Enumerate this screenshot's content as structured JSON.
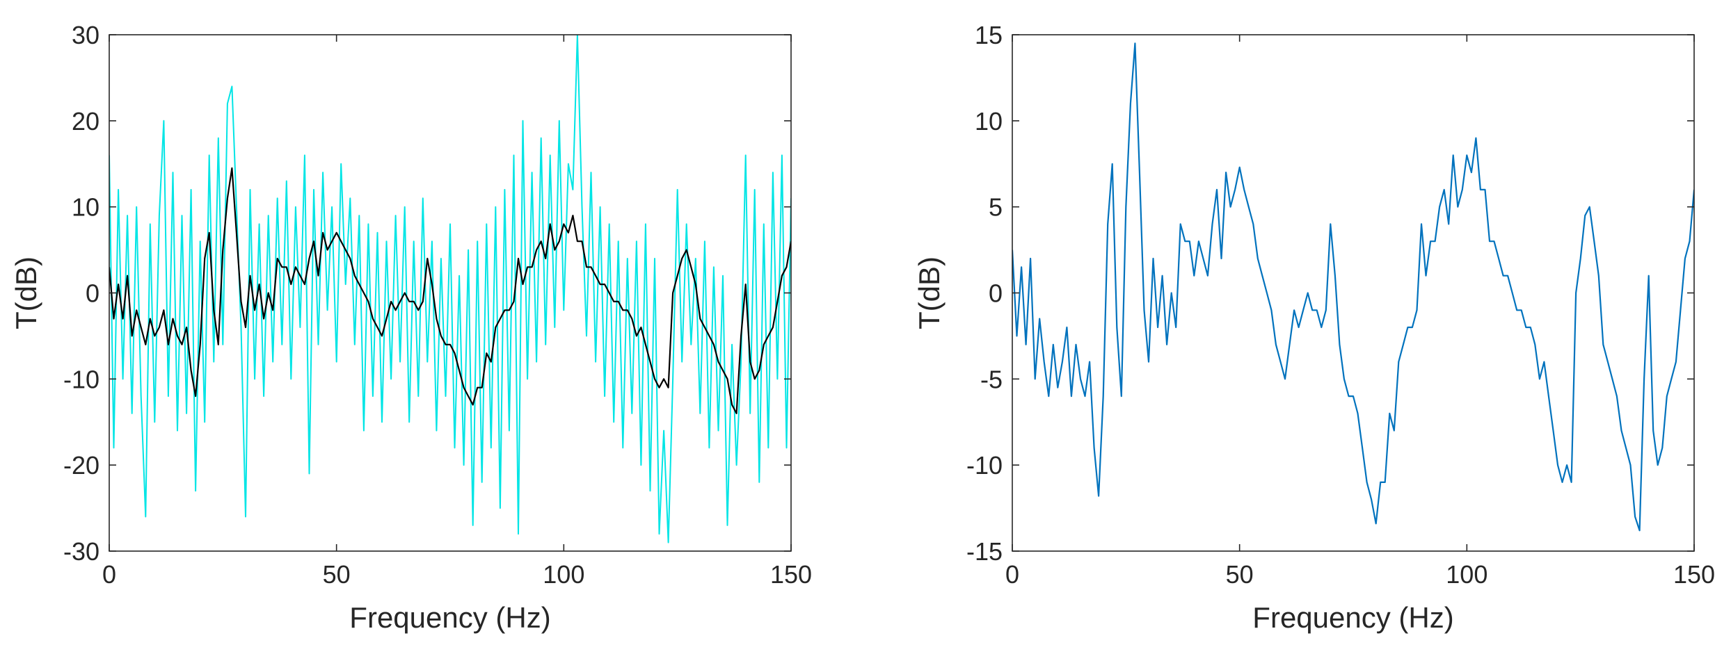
{
  "figure": {
    "background": "#ffffff",
    "axis_color": "#262626"
  },
  "chart_data": [
    {
      "type": "line",
      "title": "",
      "xlabel": "Frequency (Hz)",
      "ylabel": "T(dB)",
      "xlim": [
        0,
        150
      ],
      "ylim": [
        -30,
        30
      ],
      "xticks": [
        0,
        50,
        100,
        150
      ],
      "yticks": [
        -30,
        -20,
        -10,
        0,
        10,
        20,
        30
      ],
      "grid": false,
      "legend": "none",
      "series": [
        {
          "role": "raw",
          "color": "#00e5e5",
          "x": [
            0,
            1,
            2,
            3,
            4,
            5,
            6,
            7,
            8,
            9,
            10,
            11,
            12,
            13,
            14,
            15,
            16,
            17,
            18,
            19,
            20,
            21,
            22,
            23,
            24,
            25,
            26,
            27,
            28,
            29,
            30,
            31,
            32,
            33,
            34,
            35,
            36,
            37,
            38,
            39,
            40,
            41,
            42,
            43,
            44,
            45,
            46,
            47,
            48,
            49,
            50,
            51,
            52,
            53,
            54,
            55,
            56,
            57,
            58,
            59,
            60,
            61,
            62,
            63,
            64,
            65,
            66,
            67,
            68,
            69,
            70,
            71,
            72,
            73,
            74,
            75,
            76,
            77,
            78,
            79,
            80,
            81,
            82,
            83,
            84,
            85,
            86,
            87,
            88,
            89,
            90,
            91,
            92,
            93,
            94,
            95,
            96,
            97,
            98,
            99,
            100,
            101,
            102,
            103,
            104,
            105,
            106,
            107,
            108,
            109,
            110,
            111,
            112,
            113,
            114,
            115,
            116,
            117,
            118,
            119,
            120,
            121,
            122,
            123,
            124,
            125,
            126,
            127,
            128,
            129,
            130,
            131,
            132,
            133,
            134,
            135,
            136,
            137,
            138,
            139,
            140,
            141,
            142,
            143,
            144,
            145,
            146,
            147,
            148,
            149,
            150
          ],
          "y": [
            16,
            -18,
            12,
            -10,
            9,
            -14,
            10,
            -12,
            -26,
            8,
            -15,
            9,
            20,
            -12,
            14,
            -16,
            9,
            -14,
            12,
            -23,
            6,
            -15,
            16,
            -8,
            18,
            -6,
            22,
            24,
            10,
            -4,
            -26,
            12,
            -10,
            8,
            -12,
            9,
            -8,
            11,
            -6,
            13,
            -10,
            10,
            -4,
            16,
            -21,
            12,
            -6,
            14,
            -2,
            10,
            -8,
            15,
            1,
            11,
            -6,
            9,
            -16,
            8,
            -12,
            7,
            -15,
            6,
            -10,
            9,
            -8,
            10,
            -15,
            6,
            -12,
            11,
            -8,
            6,
            -16,
            4,
            -12,
            8,
            -18,
            2,
            -20,
            5,
            -27,
            6,
            -22,
            8,
            -18,
            10,
            -25,
            12,
            -16,
            16,
            -28,
            20,
            -10,
            14,
            -8,
            18,
            -6,
            16,
            -4,
            20,
            -2,
            15,
            12,
            30,
            10,
            -5,
            14,
            -8,
            10,
            -12,
            8,
            -15,
            6,
            -18,
            4,
            -14,
            6,
            -20,
            8,
            -23,
            4,
            -28,
            -16,
            -29,
            -10,
            12,
            -8,
            8,
            -6,
            4,
            -14,
            6,
            -18,
            3,
            -16,
            2,
            -27,
            -6,
            -20,
            -8,
            16,
            -14,
            12,
            -22,
            8,
            -18,
            14,
            -10,
            16,
            -18,
            11
          ]
        },
        {
          "role": "smoothed",
          "color": "#000000",
          "x": [
            0,
            1,
            2,
            3,
            4,
            5,
            6,
            7,
            8,
            9,
            10,
            11,
            12,
            13,
            14,
            15,
            16,
            17,
            18,
            19,
            20,
            21,
            22,
            23,
            24,
            25,
            26,
            27,
            28,
            29,
            30,
            31,
            32,
            33,
            34,
            35,
            36,
            37,
            38,
            39,
            40,
            41,
            42,
            43,
            44,
            45,
            46,
            47,
            48,
            49,
            50,
            51,
            52,
            53,
            54,
            55,
            56,
            57,
            58,
            59,
            60,
            61,
            62,
            63,
            64,
            65,
            66,
            67,
            68,
            69,
            70,
            71,
            72,
            73,
            74,
            75,
            76,
            77,
            78,
            79,
            80,
            81,
            82,
            83,
            84,
            85,
            86,
            87,
            88,
            89,
            90,
            91,
            92,
            93,
            94,
            95,
            96,
            97,
            98,
            99,
            100,
            101,
            102,
            103,
            104,
            105,
            106,
            107,
            108,
            109,
            110,
            111,
            112,
            113,
            114,
            115,
            116,
            117,
            118,
            119,
            120,
            121,
            122,
            123,
            124,
            125,
            126,
            127,
            128,
            129,
            130,
            131,
            132,
            133,
            134,
            135,
            136,
            137,
            138,
            139,
            140,
            141,
            142,
            143,
            144,
            145,
            146,
            147,
            148,
            149,
            150
          ],
          "y": [
            3,
            -3,
            1,
            -3,
            2,
            -5,
            -2,
            -4,
            -6,
            -3,
            -5,
            -4,
            -2,
            -6,
            -3,
            -5,
            -6,
            -4,
            -9,
            -12,
            -6,
            4,
            7,
            -2,
            -6,
            5,
            11,
            14.5,
            7,
            -1,
            -4,
            2,
            -2,
            1,
            -3,
            0,
            -2,
            4,
            3,
            3,
            1,
            3,
            2,
            1,
            4,
            6,
            2,
            7,
            5,
            6,
            7,
            6,
            5,
            4,
            2,
            1,
            0,
            -1,
            -3,
            -4,
            -5,
            -3,
            -1,
            -2,
            -1,
            0,
            -1,
            -1,
            -2,
            -1,
            4,
            1,
            -3,
            -5,
            -6,
            -6,
            -7,
            -9,
            -11,
            -12,
            -13,
            -11,
            -11,
            -7,
            -8,
            -4,
            -3,
            -2,
            -2,
            -1,
            4,
            1,
            3,
            3,
            5,
            6,
            4,
            8,
            5,
            6,
            8,
            7,
            9,
            6,
            6,
            3,
            3,
            2,
            1,
            1,
            0,
            -1,
            -1,
            -2,
            -2,
            -3,
            -5,
            -4,
            -6,
            -8,
            -10,
            -11,
            -10,
            -11,
            0,
            2,
            4,
            5,
            3,
            1,
            -3,
            -4,
            -5,
            -6,
            -8,
            -9,
            -10,
            -13,
            -14,
            -5,
            1,
            -8,
            -10,
            -9,
            -6,
            -5,
            -4,
            -1,
            2,
            3,
            6
          ]
        }
      ]
    },
    {
      "type": "line",
      "title": "",
      "xlabel": "Frequency (Hz)",
      "ylabel": "T(dB)",
      "xlim": [
        0,
        150
      ],
      "ylim": [
        -15,
        15
      ],
      "xticks": [
        0,
        50,
        100,
        150
      ],
      "yticks": [
        -15,
        -10,
        -5,
        0,
        5,
        10,
        15
      ],
      "grid": false,
      "legend": "none",
      "series": [
        {
          "role": "smoothed",
          "color": "#0072bd",
          "x": [
            0,
            1,
            2,
            3,
            4,
            5,
            6,
            7,
            8,
            9,
            10,
            11,
            12,
            13,
            14,
            15,
            16,
            17,
            18,
            19,
            20,
            21,
            22,
            23,
            24,
            25,
            26,
            27,
            28,
            29,
            30,
            31,
            32,
            33,
            34,
            35,
            36,
            37,
            38,
            39,
            40,
            41,
            42,
            43,
            44,
            45,
            46,
            47,
            48,
            49,
            50,
            51,
            52,
            53,
            54,
            55,
            56,
            57,
            58,
            59,
            60,
            61,
            62,
            63,
            64,
            65,
            66,
            67,
            68,
            69,
            70,
            71,
            72,
            73,
            74,
            75,
            76,
            77,
            78,
            79,
            80,
            81,
            82,
            83,
            84,
            85,
            86,
            87,
            88,
            89,
            90,
            91,
            92,
            93,
            94,
            95,
            96,
            97,
            98,
            99,
            100,
            101,
            102,
            103,
            104,
            105,
            106,
            107,
            108,
            109,
            110,
            111,
            112,
            113,
            114,
            115,
            116,
            117,
            118,
            119,
            120,
            121,
            122,
            123,
            124,
            125,
            126,
            127,
            128,
            129,
            130,
            131,
            132,
            133,
            134,
            135,
            136,
            137,
            138,
            139,
            140,
            141,
            142,
            143,
            144,
            145,
            146,
            147,
            148,
            149,
            150
          ],
          "y": [
            2.5,
            -2.5,
            1.5,
            -3,
            2,
            -5,
            -1.5,
            -4,
            -6,
            -3,
            -5.5,
            -4,
            -2,
            -6,
            -3,
            -5,
            -6,
            -4,
            -9,
            -11.8,
            -6,
            4,
            7.5,
            -2,
            -6,
            5,
            11,
            14.5,
            7,
            -1,
            -4,
            2,
            -2,
            1,
            -3,
            0,
            -2,
            4,
            3,
            3,
            1,
            3,
            2,
            1,
            4,
            6,
            2,
            7,
            5,
            6,
            7.3,
            6,
            5,
            4,
            2,
            1,
            0,
            -1,
            -3,
            -4,
            -5,
            -3,
            -1,
            -2,
            -1,
            0,
            -1,
            -1,
            -2,
            -1,
            4,
            1,
            -3,
            -5,
            -6,
            -6,
            -7,
            -9,
            -11,
            -12,
            -13.4,
            -11,
            -11,
            -7,
            -8,
            -4,
            -3,
            -2,
            -2,
            -1,
            4,
            1,
            3,
            3,
            5,
            6,
            4,
            8,
            5,
            6,
            8,
            7,
            9,
            6,
            6,
            3,
            3,
            2,
            1,
            1,
            0,
            -1,
            -1,
            -2,
            -2,
            -3,
            -5,
            -4,
            -6,
            -8,
            -10,
            -11,
            -10,
            -11,
            0,
            2,
            4.5,
            5,
            3,
            1,
            -3,
            -4,
            -5,
            -6,
            -8,
            -9,
            -10,
            -13,
            -13.8,
            -5,
            1,
            -8,
            -10,
            -9,
            -6,
            -5,
            -4,
            -1,
            2,
            3,
            6
          ]
        }
      ]
    }
  ]
}
